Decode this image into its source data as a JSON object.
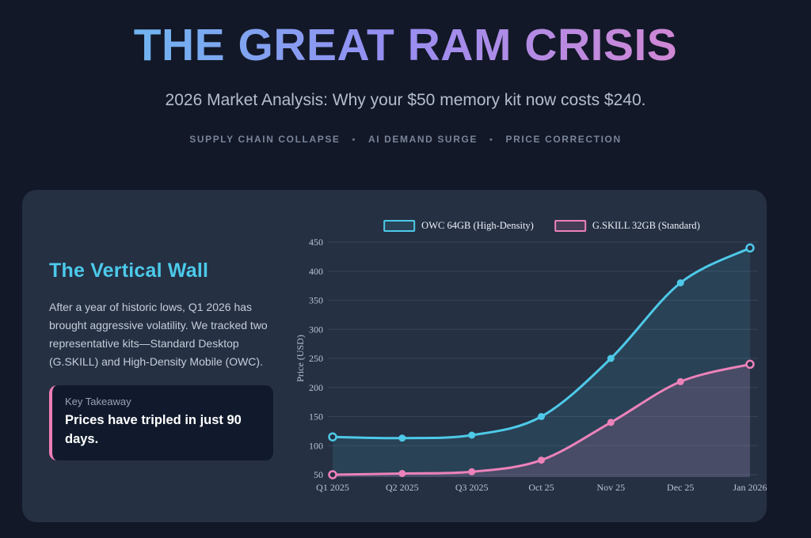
{
  "theme": {
    "page_bg": "#121827",
    "card_bg": "#253043",
    "callout_bg": "#111a2c",
    "accent_cyan": "#4cc9ea",
    "accent_pink": "#ee7eb5",
    "title_gradient": [
      "#5cc8ee",
      "#968ef2",
      "#ec85c8"
    ]
  },
  "header": {
    "title": "THE GREAT RAM CRISIS",
    "subtitle": "2026 Market Analysis: Why your $50 memory kit now costs $240.",
    "tags": [
      "SUPPLY CHAIN COLLAPSE",
      "AI DEMAND SURGE",
      "PRICE CORRECTION"
    ],
    "tag_separator": "•"
  },
  "panel": {
    "heading": "The Vertical Wall",
    "body": "After a year of historic lows, Q1 2026 has brought aggressive volatility. We tracked two representative kits—Standard Desktop (G.SKILL) and High-Density Mobile (OWC).",
    "takeaway_label": "Key Takeaway",
    "takeaway_text": "Prices have tripled in just 90 days."
  },
  "chart_data": {
    "type": "line",
    "categories": [
      "Q1 2025",
      "Q2 2025",
      "Q3 2025",
      "Oct 25",
      "Nov 25",
      "Dec 25",
      "Jan 2026"
    ],
    "series": [
      {
        "name": "OWC 64GB (High-Density)",
        "color": "#4ec9e8",
        "fill": "rgba(78,201,232,0.12)",
        "values": [
          115,
          113,
          118,
          150,
          250,
          380,
          440
        ]
      },
      {
        "name": "G.SKILL 32GB (Standard)",
        "color": "#ec82ba",
        "fill": "rgba(236,130,186,0.16)",
        "values": [
          50,
          52,
          55,
          75,
          140,
          210,
          240
        ]
      }
    ],
    "title": "",
    "xlabel": "",
    "ylabel": "Price (USD)",
    "yticks": [
      50,
      100,
      150,
      200,
      250,
      300,
      350,
      400,
      450
    ],
    "ylim": [
      50,
      450
    ],
    "grid": true,
    "legend_position": "top-center",
    "line_style": "smooth spline, filled area below each line",
    "marker_style": "solid dots; first and last points drawn as open rings"
  }
}
